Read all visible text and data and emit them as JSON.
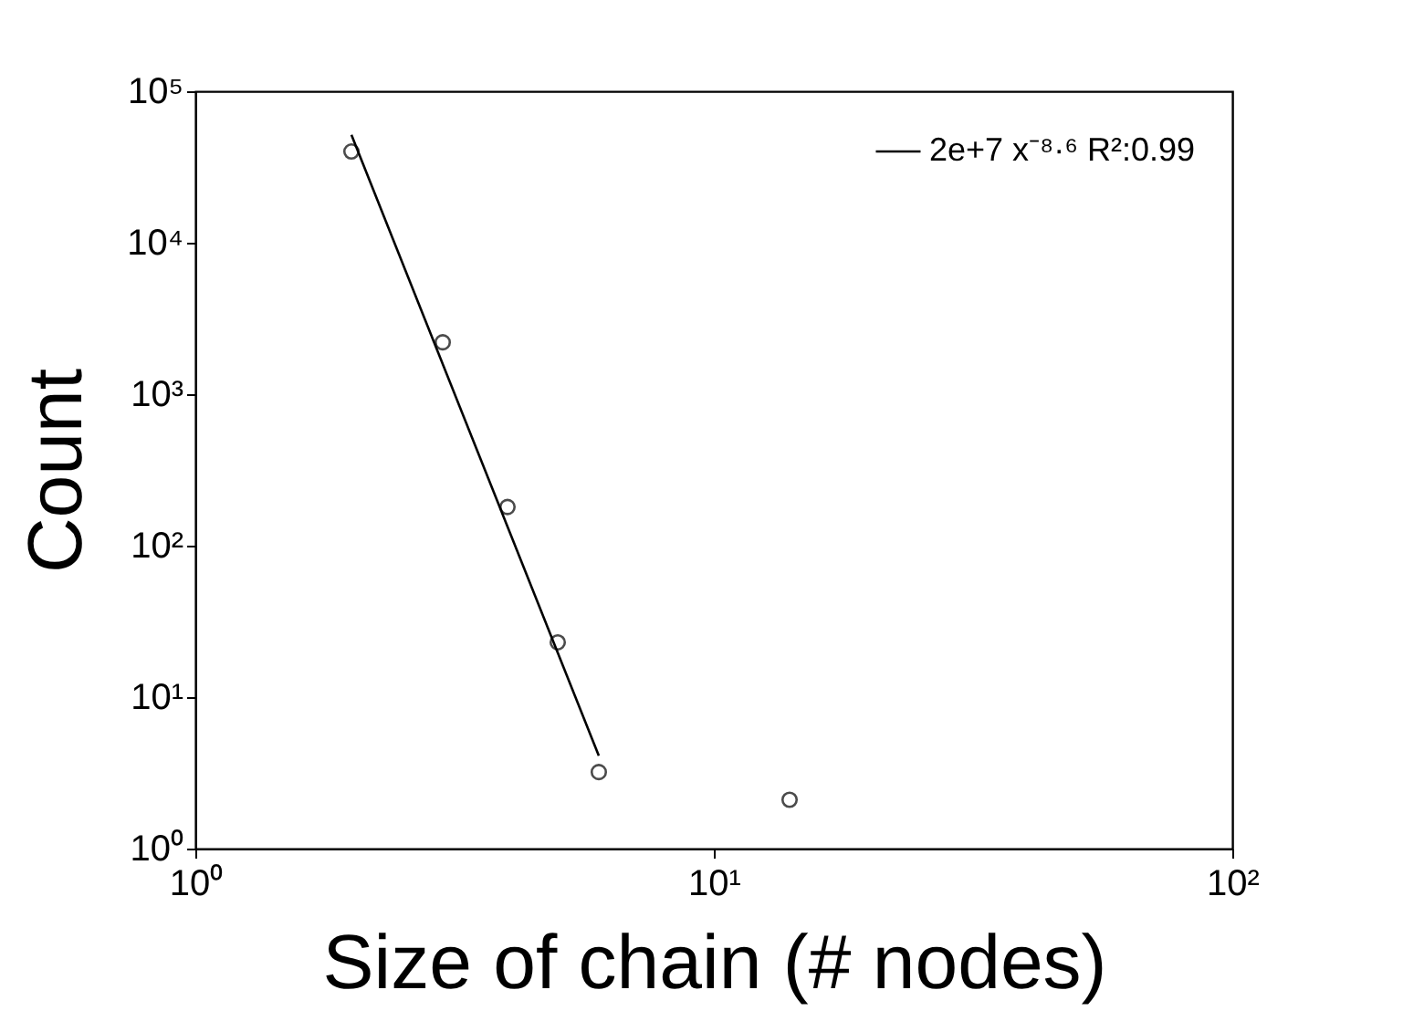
{
  "chart_data": {
    "type": "scatter",
    "xlabel": "Size of chain (# nodes)",
    "ylabel": "Count",
    "log": "xy",
    "marker": "circle",
    "grid": false,
    "legend": "top right",
    "x": [
      2,
      3,
      4,
      5,
      6,
      14
    ],
    "series": [
      {
        "color": "#000000",
        "values": [
          40000,
          2200,
          180,
          23,
          3.2,
          2.1
        ]
      },
      {
        "name": "2e+7 x⁻⁸·⁶ R²:0.99",
        "type": "line",
        "marker": "none",
        "color": "#000000",
        "x": [
          2,
          6
        ],
        "values": [
          51500,
          4.1
        ]
      }
    ],
    "xlim": [
      1,
      100
    ],
    "xticks": [
      {
        "value": 1,
        "label": "10⁰"
      },
      {
        "value": 10,
        "label": "10¹"
      },
      {
        "value": 100,
        "label": "10²"
      }
    ],
    "ylim": [
      1,
      100000
    ],
    "yticks": [
      {
        "value": 1,
        "label": "10⁰"
      },
      {
        "value": 10,
        "label": "10¹"
      },
      {
        "value": 100,
        "label": "10²"
      },
      {
        "value": 1000,
        "label": "10³"
      },
      {
        "value": 10000,
        "label": "10⁴"
      },
      {
        "value": 100000,
        "label": "10⁵"
      }
    ]
  }
}
